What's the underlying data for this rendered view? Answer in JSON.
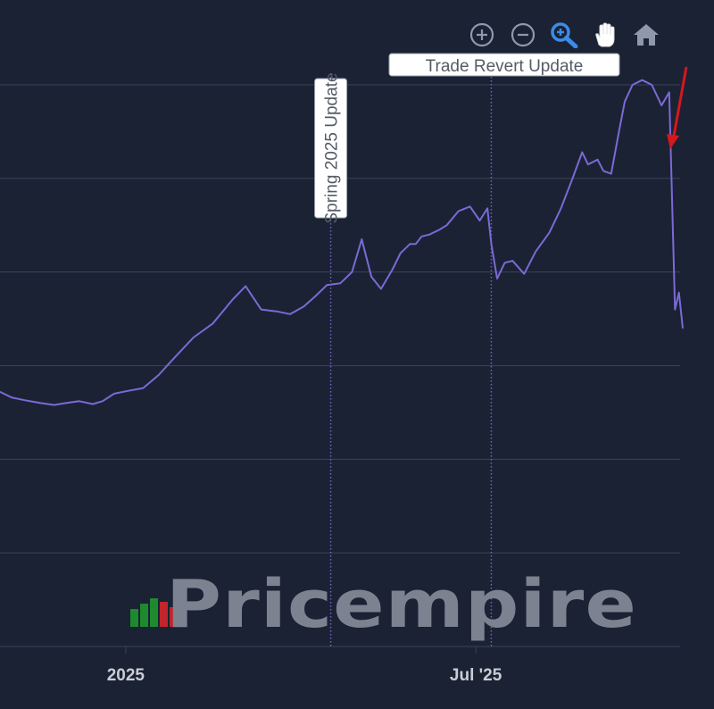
{
  "toolbar": {
    "buttons": [
      {
        "name": "zoom-in-button",
        "icon": "zoom-in-icon",
        "active": false
      },
      {
        "name": "zoom-out-button",
        "icon": "zoom-out-icon",
        "active": false
      },
      {
        "name": "zoom-select-button",
        "icon": "magnifier-icon",
        "active": true
      },
      {
        "name": "pan-button",
        "icon": "hand-icon",
        "active": false
      },
      {
        "name": "reset-button",
        "icon": "home-icon",
        "active": false
      }
    ]
  },
  "colors": {
    "background": "#1b2234",
    "grid": "#3a4456",
    "line": "#7b6ad6",
    "annotation_line": "#6f64c9",
    "arrow": "#d4181c",
    "tick_text": "#c9cdd6",
    "toolbar_icon": "#8f99ab",
    "toolbar_active": "#3b8be8",
    "logo_text": "#7d8290",
    "logo_green": "#1e8a2e",
    "logo_red": "#c0262a"
  },
  "watermark": {
    "text": "Pricempire"
  },
  "chart_data": {
    "type": "line",
    "title": "",
    "xlabel": "",
    "ylabel": "",
    "x_domain": [
      "2024-10-28",
      "2025-10-16"
    ],
    "ylim": [
      0,
      6.2
    ],
    "grid": true,
    "x_ticks": [
      {
        "date": "2025-01-01",
        "label": "2025"
      },
      {
        "date": "2025-07-01",
        "label": "Jul '25"
      }
    ],
    "y_gridlines": [
      0,
      1,
      2,
      3,
      4,
      5,
      6
    ],
    "annotations": [
      {
        "date": "2025-04-17",
        "label": "Spring 2025 Update",
        "orientation": "vertical"
      },
      {
        "date": "2025-07-09",
        "label": "Trade Revert Update",
        "orientation": "horizontal"
      }
    ],
    "marker": {
      "type": "arrow",
      "target_date": "2025-10-10",
      "color": "#d4181c"
    },
    "series": [
      {
        "name": "price",
        "x": [
          "2024-10-28",
          "2024-11-03",
          "2024-11-10",
          "2024-11-18",
          "2024-11-25",
          "2024-12-01",
          "2024-12-08",
          "2024-12-15",
          "2024-12-20",
          "2024-12-26",
          "2025-01-02",
          "2025-01-10",
          "2025-01-18",
          "2025-01-26",
          "2025-02-05",
          "2025-02-15",
          "2025-02-25",
          "2025-03-04",
          "2025-03-12",
          "2025-03-20",
          "2025-03-27",
          "2025-04-03",
          "2025-04-09",
          "2025-04-15",
          "2025-04-22",
          "2025-04-28",
          "2025-05-03",
          "2025-05-08",
          "2025-05-13",
          "2025-05-19",
          "2025-05-23",
          "2025-05-28",
          "2025-05-31",
          "2025-06-03",
          "2025-06-07",
          "2025-06-12",
          "2025-06-16",
          "2025-06-22",
          "2025-06-28",
          "2025-07-03",
          "2025-07-07",
          "2025-07-09",
          "2025-07-12",
          "2025-07-16",
          "2025-07-20",
          "2025-07-26",
          "2025-08-01",
          "2025-08-08",
          "2025-08-14",
          "2025-08-20",
          "2025-08-25",
          "2025-08-28",
          "2025-09-02",
          "2025-09-05",
          "2025-09-09",
          "2025-09-13",
          "2025-09-16",
          "2025-09-20",
          "2025-09-25",
          "2025-09-30",
          "2025-10-05",
          "2025-10-09",
          "2025-10-12",
          "2025-10-14",
          "2025-10-16"
        ],
        "values": [
          2.72,
          2.66,
          2.63,
          2.6,
          2.58,
          2.6,
          2.62,
          2.59,
          2.62,
          2.7,
          2.73,
          2.76,
          2.9,
          3.08,
          3.3,
          3.45,
          3.7,
          3.85,
          3.6,
          3.58,
          3.55,
          3.63,
          3.74,
          3.86,
          3.88,
          4.0,
          4.35,
          3.95,
          3.82,
          4.03,
          4.2,
          4.3,
          4.3,
          4.38,
          4.4,
          4.45,
          4.5,
          4.65,
          4.7,
          4.55,
          4.68,
          4.3,
          3.93,
          4.1,
          4.12,
          3.98,
          4.22,
          4.42,
          4.68,
          5.0,
          5.28,
          5.15,
          5.2,
          5.08,
          5.05,
          5.5,
          5.82,
          6.0,
          6.05,
          6.0,
          5.78,
          5.92,
          3.6,
          3.78,
          3.4
        ]
      }
    ]
  }
}
